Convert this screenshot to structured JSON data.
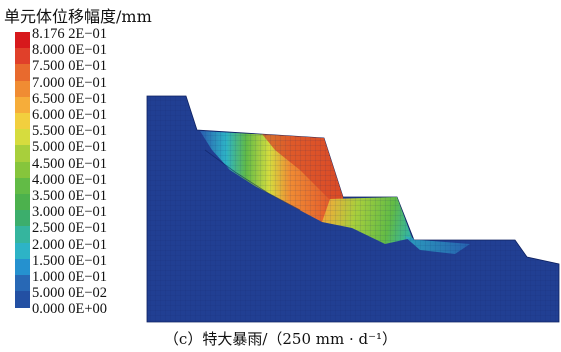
{
  "chart_data": {
    "type": "heatmap",
    "title": "单元体位移幅度/mm",
    "caption": "（c）特大暴雨/（250 mm · d⁻¹）",
    "legend": {
      "labels": [
        "8.176 2E−01",
        "8.000 0E−01",
        "7.500 0E−01",
        "7.000 0E−01",
        "6.500 0E−01",
        "6.000 0E−01",
        "5.500 0E−01",
        "5.000 0E−01",
        "4.500 0E−01",
        "4.000 0E−01",
        "3.500 0E−01",
        "3.000 0E−01",
        "2.500 0E−01",
        "2.000 0E−01",
        "1.500 0E−01",
        "1.000 0E−01",
        "5.000 0E−02",
        "0.000 0E+00"
      ],
      "values": [
        0.8176,
        0.8,
        0.75,
        0.7,
        0.65,
        0.6,
        0.55,
        0.5,
        0.45,
        0.4,
        0.35,
        0.3,
        0.25,
        0.2,
        0.15,
        0.1,
        0.05,
        0.0
      ],
      "colors": [
        "#d7191c",
        "#e0402a",
        "#e86a2e",
        "#f08c33",
        "#f6ad3a",
        "#f2cf3e",
        "#d6dc3e",
        "#a8cf3c",
        "#86c53c",
        "#62bb46",
        "#4cb14d",
        "#3cae6c",
        "#35b59e",
        "#2db3c6",
        "#2591cf",
        "#2868b5",
        "#2350a3",
        "#213f93"
      ]
    },
    "background_value": 0.0,
    "background_color": "#213f93"
  }
}
